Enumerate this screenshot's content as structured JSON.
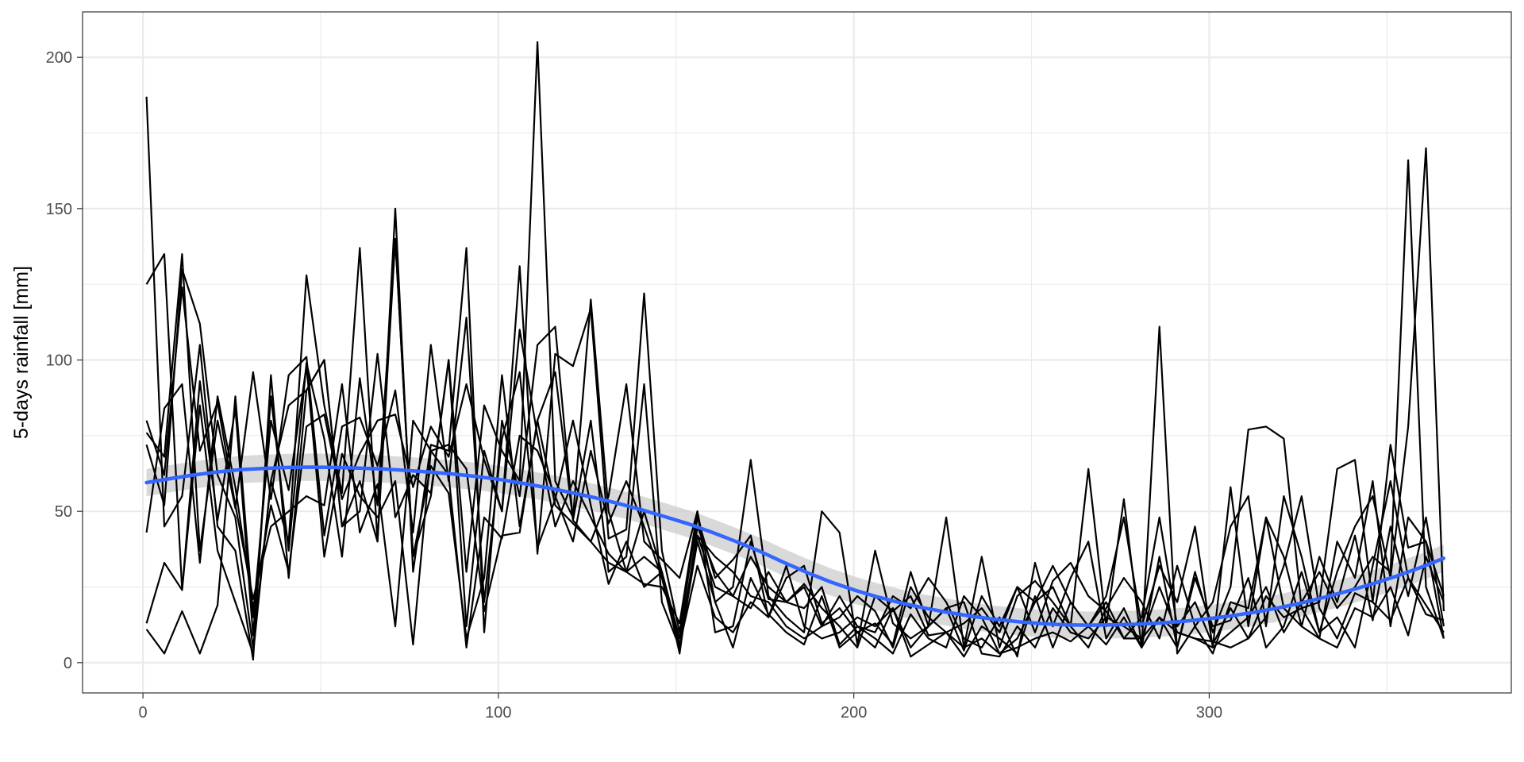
{
  "chart_data": {
    "type": "line",
    "title": "",
    "xlabel": "",
    "ylabel": "5-days rainfall [mm]",
    "xlim": [
      -17,
      385
    ],
    "ylim": [
      -10,
      215
    ],
    "x_ticks": [
      0,
      100,
      200,
      300
    ],
    "y_ticks": [
      0,
      50,
      100,
      150,
      200
    ],
    "x_minor": [
      50,
      150,
      250,
      350
    ],
    "y_minor": [
      25,
      75,
      125,
      175
    ],
    "grid": true,
    "legend": "none",
    "colors": {
      "series": "#000000",
      "smooth": "#3366ff",
      "band": "#cccccc",
      "grid": "#ebebeb",
      "panel_border": "#333333",
      "tick_label": "#4d4d4d"
    },
    "x": [
      1,
      6,
      11,
      16,
      21,
      26,
      31,
      36,
      41,
      46,
      51,
      56,
      61,
      66,
      71,
      76,
      81,
      86,
      91,
      96,
      101,
      106,
      111,
      116,
      121,
      126,
      131,
      136,
      141,
      146,
      151,
      156,
      161,
      166,
      171,
      176,
      181,
      186,
      191,
      196,
      201,
      206,
      211,
      216,
      221,
      226,
      231,
      236,
      241,
      246,
      251,
      256,
      261,
      266,
      271,
      276,
      281,
      286,
      291,
      296,
      301,
      306,
      311,
      316,
      321,
      326,
      331,
      336,
      341,
      346,
      351,
      356,
      361,
      366
    ],
    "series": [
      {
        "values": [
          187,
          45,
          55,
          105,
          45,
          37,
          1,
          95,
          28,
          90,
          100,
          45,
          50,
          102,
          48,
          62,
          56,
          100,
          30,
          85,
          70,
          60,
          205,
          60,
          48,
          120,
          50,
          30,
          35,
          30,
          3,
          45,
          30,
          22,
          18,
          30,
          20,
          25,
          12,
          15,
          22,
          17,
          5,
          25,
          15,
          10,
          5,
          8,
          3,
          5,
          8,
          10,
          7,
          12,
          20,
          8,
          8,
          25,
          10,
          8,
          5,
          10,
          15,
          25,
          10,
          20,
          30,
          18,
          25,
          35,
          30,
          166,
          25,
          8
        ]
      },
      {
        "values": [
          125,
          135,
          24,
          85,
          37,
          20,
          3,
          60,
          40,
          128,
          85,
          56,
          137,
          40,
          150,
          30,
          72,
          70,
          137,
          10,
          80,
          55,
          105,
          111,
          47,
          80,
          30,
          35,
          92,
          20,
          5,
          40,
          20,
          25,
          67,
          22,
          15,
          10,
          50,
          43,
          6,
          37,
          13,
          8,
          12,
          48,
          5,
          35,
          5,
          22,
          27,
          20,
          12,
          64,
          12,
          54,
          5,
          111,
          3,
          12,
          20,
          45,
          55,
          12,
          55,
          35,
          10,
          30,
          45,
          55,
          28,
          78,
          170,
          17
        ]
      },
      {
        "values": [
          43,
          84,
          92,
          33,
          88,
          58,
          18,
          52,
          30,
          78,
          82,
          54,
          69,
          80,
          82,
          58,
          78,
          68,
          92,
          67,
          50,
          131,
          36,
          102,
          98,
          117,
          41,
          44,
          122,
          37,
          10,
          48,
          28,
          34,
          42,
          15,
          28,
          32,
          13,
          18,
          10,
          13,
          6,
          30,
          12,
          18,
          4,
          22,
          12,
          25,
          20,
          32,
          20,
          12,
          22,
          48,
          12,
          32,
          20,
          45,
          5,
          58,
          12,
          48,
          18,
          12,
          35,
          20,
          42,
          14,
          45,
          22,
          48,
          12
        ]
      },
      {
        "values": [
          13,
          33,
          24,
          93,
          47,
          84,
          9,
          88,
          37,
          99,
          74,
          35,
          94,
          52,
          140,
          35,
          65,
          56,
          8,
          28,
          95,
          45,
          80,
          52,
          46,
          40,
          33,
          30,
          26,
          25,
          13,
          50,
          10,
          12,
          40,
          21,
          20,
          26,
          18,
          12,
          5,
          22,
          17,
          22,
          9,
          10,
          13,
          18,
          10,
          25,
          10,
          27,
          33,
          22,
          17,
          8,
          15,
          48,
          12,
          20,
          6,
          18,
          8,
          15,
          32,
          55,
          18,
          8,
          23,
          20,
          14,
          28,
          19,
          10
        ]
      },
      {
        "values": [
          80,
          62,
          124,
          70,
          86,
          52,
          21,
          45,
          50,
          55,
          52,
          92,
          43,
          59,
          12,
          80,
          70,
          62,
          5,
          48,
          41,
          75,
          70,
          55,
          40,
          70,
          46,
          60,
          45,
          28,
          4,
          42,
          35,
          30,
          22,
          20,
          12,
          8,
          12,
          22,
          12,
          8,
          3,
          16,
          8,
          5,
          22,
          15,
          3,
          8,
          20,
          25,
          12,
          5,
          18,
          28,
          20,
          8,
          32,
          12,
          3,
          20,
          18,
          48,
          35,
          12,
          8,
          40,
          28,
          60,
          12,
          48,
          40,
          22
        ]
      },
      {
        "values": [
          11,
          3,
          17,
          3,
          19,
          88,
          15,
          80,
          57,
          98,
          35,
          69,
          55,
          48,
          60,
          6,
          70,
          72,
          64,
          17,
          42,
          43,
          80,
          96,
          47,
          40,
          55,
          92,
          40,
          34,
          28,
          50,
          20,
          5,
          28,
          16,
          10,
          6,
          22,
          5,
          10,
          5,
          18,
          2,
          6,
          10,
          2,
          12,
          8,
          3,
          22,
          5,
          20,
          12,
          6,
          15,
          5,
          15,
          10,
          8,
          7,
          5,
          8,
          22,
          15,
          18,
          8,
          5,
          18,
          15,
          25,
          9,
          35,
          20
        ]
      },
      {
        "values": [
          76,
          68,
          135,
          37,
          80,
          51,
          96,
          54,
          95,
          101,
          42,
          78,
          81,
          65,
          90,
          43,
          105,
          60,
          114,
          20,
          74,
          96,
          38,
          54,
          80,
          52,
          26,
          40,
          25,
          30,
          8,
          42,
          25,
          22,
          35,
          25,
          20,
          18,
          25,
          6,
          12,
          10,
          22,
          18,
          28,
          20,
          8,
          5,
          15,
          2,
          33,
          12,
          28,
          40,
          8,
          18,
          5,
          35,
          5,
          28,
          12,
          14,
          28,
          5,
          12,
          30,
          10,
          15,
          5,
          32,
          60,
          28,
          16,
          14
        ]
      },
      {
        "values": [
          72,
          52,
          130,
          112,
          62,
          48,
          5,
          60,
          85,
          90,
          100,
          45,
          60,
          40,
          140,
          35,
          55,
          100,
          12,
          70,
          50,
          110,
          75,
          45,
          60,
          48,
          36,
          30,
          50,
          30,
          6,
          32,
          15,
          10,
          20,
          15,
          32,
          12,
          8,
          10,
          15,
          12,
          18,
          5,
          12,
          18,
          20,
          3,
          2,
          12,
          5,
          18,
          10,
          8,
          15,
          12,
          8,
          15,
          5,
          30,
          10,
          25,
          77,
          78,
          74,
          18,
          20,
          64,
          67,
          20,
          72,
          38,
          40,
          8
        ]
      }
    ],
    "smooth_values": [
      59.5,
      60.8,
      62,
      63,
      63.8,
      64.2,
      64.5,
      64.6,
      64.5,
      64.3,
      64,
      63.5,
      63,
      62.3,
      61.5,
      60.5,
      59.2,
      57.8,
      56.2,
      54.5,
      52.6,
      50.5,
      48.2,
      45.8,
      43,
      40,
      36.8,
      33.2,
      29.8,
      26.7,
      24,
      21.7,
      19.7,
      18,
      16.6,
      15.3,
      14.3,
      13.5,
      12.9,
      12.5,
      12.4,
      12.5,
      12.7,
      13.1,
      13.7,
      14.5,
      15.5,
      16.7,
      18.1,
      19.8,
      21.7,
      23.8,
      26.1,
      28.6,
      31.4,
      34.5
    ],
    "smooth_band_half_width": 4.5
  }
}
